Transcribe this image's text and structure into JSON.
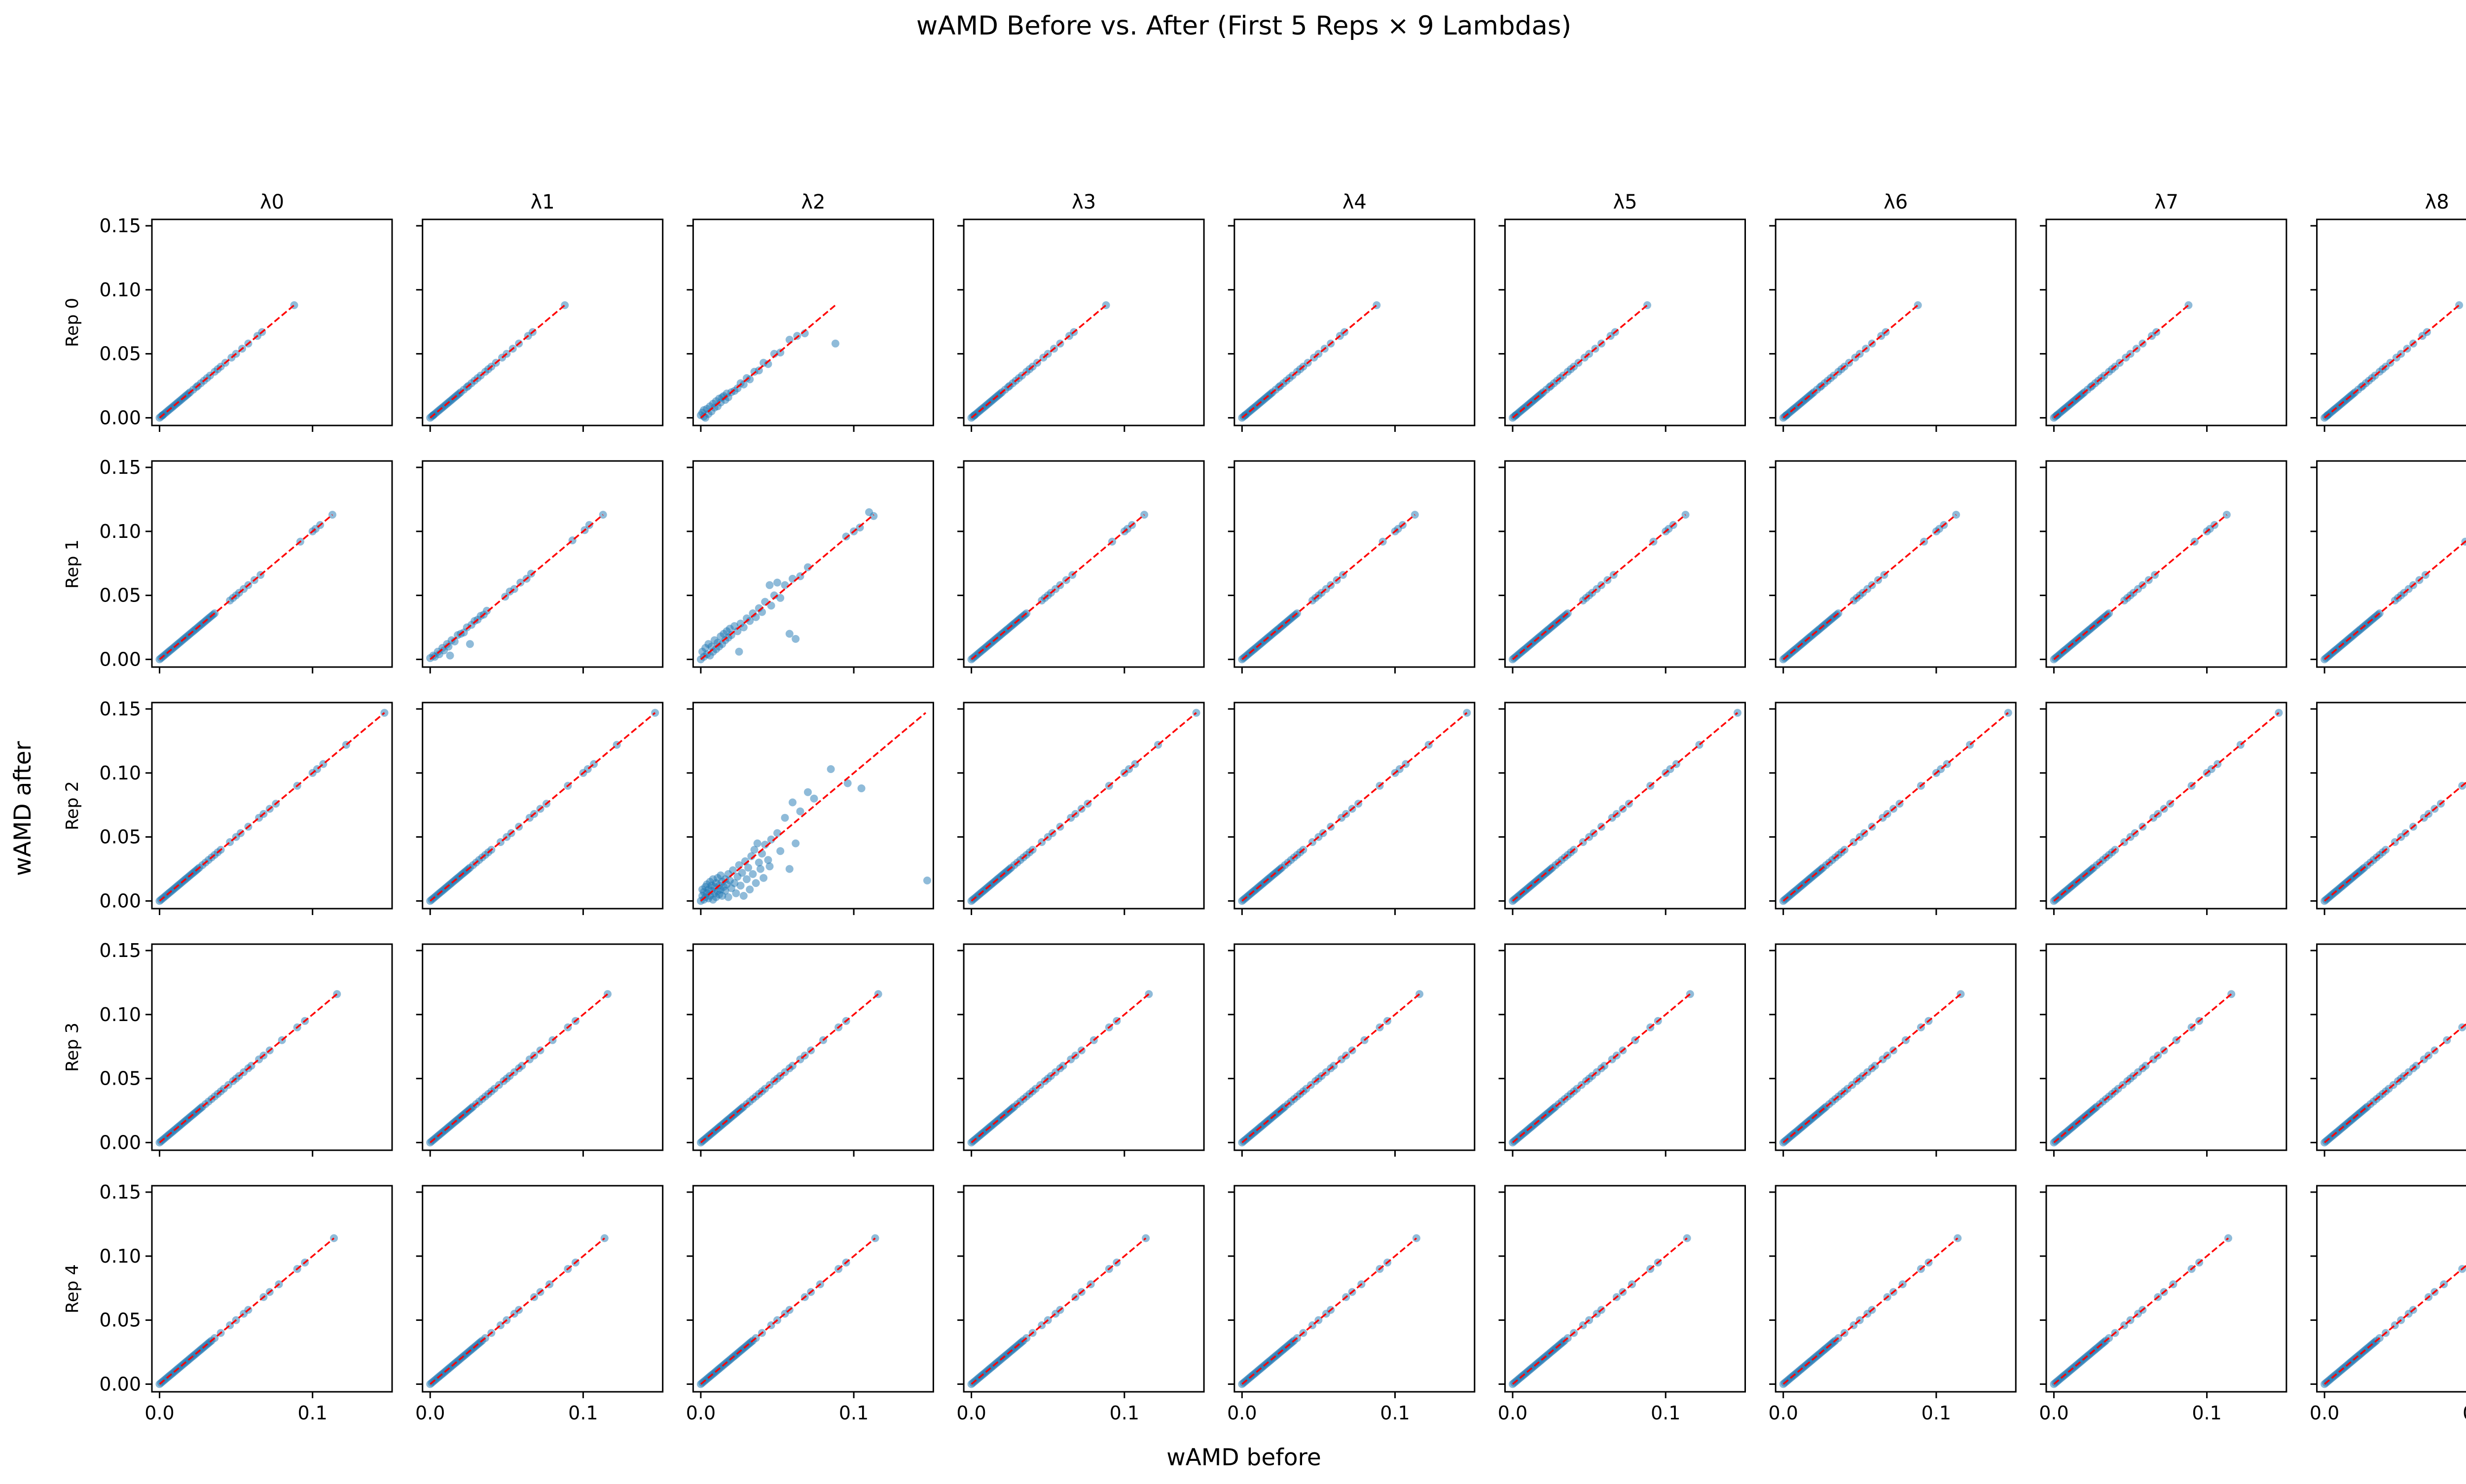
{
  "chart_data": {
    "type": "scatter",
    "title": "wAMD Before vs. After (First 5 Reps × 9 Lambdas)",
    "xlabel": "wAMD before",
    "ylabel": "wAMD after",
    "columns": [
      "λ0",
      "λ1",
      "λ2",
      "λ3",
      "λ4",
      "λ5",
      "λ6",
      "λ7",
      "λ8"
    ],
    "rows": [
      "Rep 0",
      "Rep 1",
      "Rep 2",
      "Rep 3",
      "Rep 4"
    ],
    "row_max_before": [
      0.088,
      0.113,
      0.147,
      0.116,
      0.114
    ],
    "x_ticks": [
      0.0,
      0.1
    ],
    "x_tick_labels": [
      "0.0",
      "0.1"
    ],
    "y_ticks": [
      0.0,
      0.05,
      0.1,
      0.15
    ],
    "y_tick_labels": [
      "0.00",
      "0.05",
      "0.10",
      "0.15"
    ],
    "xlim": [
      -0.005,
      0.152
    ],
    "ylim": [
      -0.006,
      0.155
    ],
    "sharex": true,
    "sharey": true,
    "reference_line": "y = x",
    "colors": {
      "points": "#1f77b4",
      "reference_line": "#ff0000",
      "axes": "#000000"
    },
    "panel_points": {
      "Rep 0": {
        "identity_values": [
          0.0,
          0.001,
          0.002,
          0.002,
          0.003,
          0.004,
          0.005,
          0.006,
          0.007,
          0.008,
          0.009,
          0.01,
          0.011,
          0.012,
          0.013,
          0.014,
          0.015,
          0.016,
          0.017,
          0.018,
          0.019,
          0.02,
          0.022,
          0.024,
          0.025,
          0.027,
          0.029,
          0.031,
          0.033,
          0.036,
          0.038,
          0.04,
          0.043,
          0.047,
          0.05,
          0.054,
          0.058,
          0.064,
          0.067,
          0.088
        ],
        "λ2": [
          [
            0.0,
            0.002
          ],
          [
            0.001,
            0.004
          ],
          [
            0.002,
            0.001
          ],
          [
            0.002,
            0.006
          ],
          [
            0.003,
            0.0
          ],
          [
            0.004,
            0.007
          ],
          [
            0.005,
            0.003
          ],
          [
            0.006,
            0.009
          ],
          [
            0.007,
            0.005
          ],
          [
            0.008,
            0.011
          ],
          [
            0.009,
            0.008
          ],
          [
            0.01,
            0.013
          ],
          [
            0.011,
            0.009
          ],
          [
            0.012,
            0.015
          ],
          [
            0.013,
            0.012
          ],
          [
            0.014,
            0.016
          ],
          [
            0.015,
            0.017
          ],
          [
            0.016,
            0.014
          ],
          [
            0.017,
            0.019
          ],
          [
            0.018,
            0.016
          ],
          [
            0.02,
            0.02
          ],
          [
            0.022,
            0.021
          ],
          [
            0.024,
            0.023
          ],
          [
            0.026,
            0.027
          ],
          [
            0.028,
            0.026
          ],
          [
            0.03,
            0.031
          ],
          [
            0.032,
            0.03
          ],
          [
            0.035,
            0.036
          ],
          [
            0.038,
            0.037
          ],
          [
            0.041,
            0.043
          ],
          [
            0.044,
            0.042
          ],
          [
            0.048,
            0.05
          ],
          [
            0.052,
            0.051
          ],
          [
            0.058,
            0.061
          ],
          [
            0.063,
            0.064
          ],
          [
            0.068,
            0.066
          ],
          [
            0.088,
            0.058
          ]
        ]
      },
      "Rep 1": {
        "identity_values": [
          0.0,
          0.001,
          0.002,
          0.003,
          0.004,
          0.005,
          0.006,
          0.007,
          0.008,
          0.009,
          0.01,
          0.011,
          0.012,
          0.013,
          0.014,
          0.015,
          0.016,
          0.017,
          0.018,
          0.019,
          0.02,
          0.021,
          0.022,
          0.023,
          0.024,
          0.025,
          0.026,
          0.027,
          0.028,
          0.029,
          0.03,
          0.031,
          0.032,
          0.033,
          0.034,
          0.035,
          0.036,
          0.046,
          0.048,
          0.05,
          0.052,
          0.055,
          0.058,
          0.062,
          0.066,
          0.092,
          0.1,
          0.102,
          0.105,
          0.113
        ],
        "λ1": [
          [
            0.0,
            0.001
          ],
          [
            0.002,
            0.003
          ],
          [
            0.003,
            0.002
          ],
          [
            0.005,
            0.006
          ],
          [
            0.006,
            0.004
          ],
          [
            0.008,
            0.009
          ],
          [
            0.009,
            0.007
          ],
          [
            0.011,
            0.012
          ],
          [
            0.012,
            0.01
          ],
          [
            0.013,
            0.003
          ],
          [
            0.014,
            0.015
          ],
          [
            0.016,
            0.014
          ],
          [
            0.018,
            0.019
          ],
          [
            0.02,
            0.02
          ],
          [
            0.022,
            0.021
          ],
          [
            0.024,
            0.025
          ],
          [
            0.026,
            0.012
          ],
          [
            0.027,
            0.027
          ],
          [
            0.029,
            0.03
          ],
          [
            0.031,
            0.031
          ],
          [
            0.033,
            0.034
          ],
          [
            0.035,
            0.035
          ],
          [
            0.037,
            0.038
          ],
          [
            0.049,
            0.049
          ],
          [
            0.052,
            0.053
          ],
          [
            0.055,
            0.055
          ],
          [
            0.059,
            0.06
          ],
          [
            0.063,
            0.063
          ],
          [
            0.066,
            0.067
          ],
          [
            0.093,
            0.093
          ],
          [
            0.101,
            0.101
          ],
          [
            0.104,
            0.105
          ],
          [
            0.113,
            0.113
          ]
        ],
        "λ2": [
          [
            0.0,
            0.0
          ],
          [
            0.001,
            0.006
          ],
          [
            0.002,
            0.002
          ],
          [
            0.003,
            0.009
          ],
          [
            0.004,
            0.004
          ],
          [
            0.005,
            0.012
          ],
          [
            0.006,
            0.003
          ],
          [
            0.007,
            0.01
          ],
          [
            0.008,
            0.006
          ],
          [
            0.009,
            0.015
          ],
          [
            0.01,
            0.008
          ],
          [
            0.011,
            0.013
          ],
          [
            0.012,
            0.01
          ],
          [
            0.013,
            0.018
          ],
          [
            0.014,
            0.012
          ],
          [
            0.015,
            0.02
          ],
          [
            0.016,
            0.015
          ],
          [
            0.017,
            0.022
          ],
          [
            0.018,
            0.017
          ],
          [
            0.019,
            0.024
          ],
          [
            0.02,
            0.019
          ],
          [
            0.022,
            0.026
          ],
          [
            0.024,
            0.022
          ],
          [
            0.025,
            0.006
          ],
          [
            0.026,
            0.028
          ],
          [
            0.028,
            0.025
          ],
          [
            0.03,
            0.032
          ],
          [
            0.032,
            0.03
          ],
          [
            0.034,
            0.036
          ],
          [
            0.036,
            0.033
          ],
          [
            0.038,
            0.04
          ],
          [
            0.04,
            0.037
          ],
          [
            0.042,
            0.045
          ],
          [
            0.045,
            0.058
          ],
          [
            0.046,
            0.042
          ],
          [
            0.048,
            0.05
          ],
          [
            0.05,
            0.06
          ],
          [
            0.052,
            0.048
          ],
          [
            0.055,
            0.058
          ],
          [
            0.058,
            0.02
          ],
          [
            0.06,
            0.063
          ],
          [
            0.062,
            0.016
          ],
          [
            0.065,
            0.065
          ],
          [
            0.07,
            0.072
          ],
          [
            0.095,
            0.096
          ],
          [
            0.1,
            0.1
          ],
          [
            0.104,
            0.103
          ],
          [
            0.11,
            0.115
          ],
          [
            0.113,
            0.112
          ]
        ]
      },
      "Rep 2": {
        "identity_values": [
          0.0,
          0.001,
          0.002,
          0.003,
          0.004,
          0.005,
          0.006,
          0.007,
          0.008,
          0.009,
          0.01,
          0.011,
          0.012,
          0.013,
          0.014,
          0.015,
          0.016,
          0.017,
          0.018,
          0.019,
          0.02,
          0.021,
          0.022,
          0.023,
          0.024,
          0.025,
          0.026,
          0.028,
          0.03,
          0.032,
          0.034,
          0.036,
          0.038,
          0.04,
          0.046,
          0.05,
          0.053,
          0.058,
          0.065,
          0.068,
          0.072,
          0.076,
          0.09,
          0.1,
          0.103,
          0.107,
          0.122,
          0.147
        ],
        "λ2": [
          [
            0.0,
            0.0
          ],
          [
            0.001,
            0.004
          ],
          [
            0.001,
            0.009
          ],
          [
            0.002,
            0.001
          ],
          [
            0.002,
            0.007
          ],
          [
            0.003,
            0.011
          ],
          [
            0.003,
            0.003
          ],
          [
            0.004,
            0.006
          ],
          [
            0.004,
            0.013
          ],
          [
            0.005,
            0.002
          ],
          [
            0.005,
            0.009
          ],
          [
            0.006,
            0.015
          ],
          [
            0.006,
            0.004
          ],
          [
            0.007,
            0.008
          ],
          [
            0.007,
            0.012
          ],
          [
            0.008,
            0.001
          ],
          [
            0.008,
            0.017
          ],
          [
            0.009,
            0.006
          ],
          [
            0.009,
            0.011
          ],
          [
            0.01,
            0.003
          ],
          [
            0.01,
            0.014
          ],
          [
            0.011,
            0.008
          ],
          [
            0.011,
            0.018
          ],
          [
            0.012,
            0.005
          ],
          [
            0.012,
            0.012
          ],
          [
            0.013,
            0.009
          ],
          [
            0.013,
            0.02
          ],
          [
            0.014,
            0.015
          ],
          [
            0.014,
            0.004
          ],
          [
            0.015,
            0.011
          ],
          [
            0.016,
            0.017
          ],
          [
            0.016,
            0.008
          ],
          [
            0.017,
            0.013
          ],
          [
            0.018,
            0.021
          ],
          [
            0.018,
            0.003
          ],
          [
            0.019,
            0.016
          ],
          [
            0.02,
            0.01
          ],
          [
            0.021,
            0.024
          ],
          [
            0.022,
            0.014
          ],
          [
            0.023,
            0.006
          ],
          [
            0.024,
            0.019
          ],
          [
            0.025,
            0.028
          ],
          [
            0.026,
            0.012
          ],
          [
            0.027,
            0.022
          ],
          [
            0.028,
            0.004
          ],
          [
            0.029,
            0.031
          ],
          [
            0.03,
            0.017
          ],
          [
            0.031,
            0.026
          ],
          [
            0.032,
            0.009
          ],
          [
            0.033,
            0.035
          ],
          [
            0.034,
            0.021
          ],
          [
            0.035,
            0.04
          ],
          [
            0.036,
            0.014
          ],
          [
            0.037,
            0.045
          ],
          [
            0.038,
            0.03
          ],
          [
            0.039,
            0.025
          ],
          [
            0.04,
            0.037
          ],
          [
            0.041,
            0.018
          ],
          [
            0.042,
            0.044
          ],
          [
            0.044,
            0.032
          ],
          [
            0.045,
            0.027
          ],
          [
            0.046,
            0.048
          ],
          [
            0.05,
            0.053
          ],
          [
            0.052,
            0.039
          ],
          [
            0.055,
            0.065
          ],
          [
            0.058,
            0.025
          ],
          [
            0.06,
            0.077
          ],
          [
            0.062,
            0.045
          ],
          [
            0.065,
            0.07
          ],
          [
            0.07,
            0.085
          ],
          [
            0.074,
            0.08
          ],
          [
            0.085,
            0.103
          ],
          [
            0.096,
            0.092
          ],
          [
            0.105,
            0.088
          ],
          [
            0.148,
            0.016
          ]
        ]
      },
      "Rep 3": {
        "identity_values": [
          0.0,
          0.001,
          0.002,
          0.003,
          0.004,
          0.005,
          0.006,
          0.007,
          0.008,
          0.009,
          0.01,
          0.011,
          0.012,
          0.013,
          0.014,
          0.015,
          0.016,
          0.017,
          0.018,
          0.019,
          0.02,
          0.021,
          0.022,
          0.023,
          0.024,
          0.025,
          0.026,
          0.027,
          0.028,
          0.03,
          0.032,
          0.034,
          0.036,
          0.038,
          0.04,
          0.042,
          0.045,
          0.048,
          0.05,
          0.052,
          0.055,
          0.058,
          0.06,
          0.065,
          0.068,
          0.072,
          0.08,
          0.09,
          0.095,
          0.116
        ]
      },
      "Rep 4": {
        "identity_values": [
          0.0,
          0.001,
          0.002,
          0.003,
          0.004,
          0.005,
          0.006,
          0.007,
          0.008,
          0.009,
          0.01,
          0.011,
          0.012,
          0.013,
          0.014,
          0.015,
          0.016,
          0.017,
          0.018,
          0.019,
          0.02,
          0.021,
          0.022,
          0.023,
          0.024,
          0.025,
          0.026,
          0.027,
          0.028,
          0.029,
          0.03,
          0.031,
          0.032,
          0.033,
          0.034,
          0.036,
          0.04,
          0.046,
          0.05,
          0.055,
          0.058,
          0.068,
          0.072,
          0.078,
          0.09,
          0.095,
          0.114
        ]
      }
    }
  }
}
